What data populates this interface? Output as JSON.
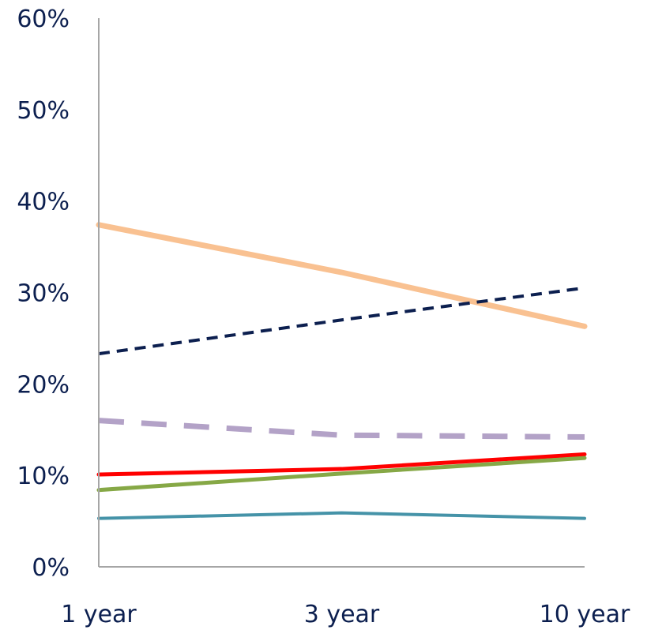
{
  "chart_data": {
    "type": "line",
    "categories": [
      "1 year",
      "3 year",
      "10 year"
    ],
    "ylim": [
      0,
      60
    ],
    "yticks": [
      "0%",
      "10%",
      "20%",
      "30%",
      "40%",
      "50%",
      "60%"
    ],
    "ytick_values": [
      0,
      10,
      20,
      30,
      40,
      50,
      60
    ],
    "grid": false,
    "legend": "none",
    "series": [
      {
        "values": [
          37.4,
          32.2,
          26.3
        ],
        "color": "#f9c191",
        "style": "solid",
        "width": 7
      },
      {
        "values": [
          23.3,
          27.0,
          30.5
        ],
        "color": "#0c1f4f",
        "style": "dashed-short",
        "width": 4
      },
      {
        "values": [
          16.0,
          14.4,
          14.2
        ],
        "color": "#b3a2c7",
        "style": "dashed-long",
        "width": 7
      },
      {
        "values": [
          10.1,
          10.7,
          12.3
        ],
        "color": "#ff0000",
        "style": "solid",
        "width": 5
      },
      {
        "values": [
          8.4,
          10.2,
          11.9
        ],
        "color": "#86a846",
        "style": "solid",
        "width": 5
      },
      {
        "values": [
          5.3,
          5.9,
          5.3
        ],
        "color": "#4593a8",
        "style": "solid",
        "width": 4
      }
    ]
  }
}
